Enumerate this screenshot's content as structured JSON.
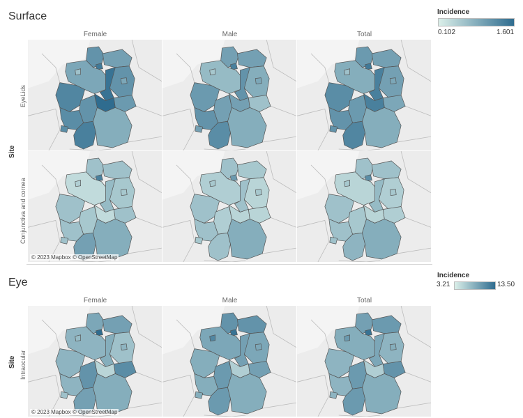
{
  "sections": [
    {
      "title": "Surface",
      "row_axis_title": "Site",
      "columns": [
        "Female",
        "Male",
        "Total"
      ],
      "rows": [
        {
          "label": "EyeLids",
          "shades": [
            [
              0.7,
              0.9,
              0.55,
              0.35,
              0.6,
              0.7,
              0.55,
              0.95,
              0.8,
              0.7,
              1.0,
              0.65,
              0.75,
              0.75,
              0.85
            ],
            [
              0.6,
              0.85,
              0.4,
              0.3,
              0.6,
              0.5,
              0.55,
              0.7,
              0.65,
              0.6,
              0.6,
              0.35,
              0.7,
              0.6,
              0.75
            ],
            [
              0.65,
              0.9,
              0.5,
              0.35,
              0.6,
              0.6,
              0.55,
              0.85,
              0.75,
              0.65,
              0.85,
              0.55,
              0.7,
              0.7,
              0.8
            ]
          ]
        },
        {
          "label": "Conjunctiva and cornea",
          "shades": [
            [
              0.35,
              0.85,
              0.15,
              0.25,
              0.35,
              0.3,
              0.3,
              0.4,
              0.35,
              0.3,
              0.15,
              0.35,
              0.35,
              0.35,
              0.6
            ],
            [
              0.35,
              0.65,
              0.25,
              0.3,
              0.3,
              0.2,
              0.3,
              0.35,
              0.35,
              0.25,
              0.2,
              0.2,
              0.35,
              0.3,
              0.35
            ],
            [
              0.35,
              0.75,
              0.2,
              0.3,
              0.35,
              0.25,
              0.3,
              0.4,
              0.35,
              0.3,
              0.2,
              0.25,
              0.35,
              0.35,
              0.45
            ]
          ]
        }
      ],
      "attribution": "© 2023 Mapbox © OpenStreetMap",
      "legend": {
        "title": "Incidence",
        "min": "0.102",
        "max": "1.601",
        "colors": [
          "#dbefe9",
          "#2f6c8f"
        ]
      }
    },
    {
      "title": "Eye",
      "row_axis_title": "Site",
      "columns": [
        "Female",
        "Male",
        "Total"
      ],
      "rows": [
        {
          "label": "Intraocular",
          "shades": [
            [
              0.55,
              1.0,
              0.45,
              0.4,
              0.6,
              0.35,
              0.45,
              0.5,
              0.45,
              0.7,
              0.2,
              0.75,
              0.45,
              0.35,
              0.6
            ],
            [
              0.7,
              0.95,
              0.55,
              0.8,
              0.7,
              0.55,
              0.55,
              0.6,
              0.5,
              0.65,
              0.25,
              0.6,
              0.5,
              0.5,
              0.65
            ],
            [
              0.6,
              0.95,
              0.5,
              0.65,
              0.65,
              0.45,
              0.5,
              0.55,
              0.45,
              0.65,
              0.25,
              0.7,
              0.45,
              0.45,
              0.65
            ]
          ]
        }
      ],
      "attribution": "© 2023 Mapbox © OpenStreetMap",
      "legend": {
        "title": "Incidence",
        "min": "3.21",
        "max": "13.50",
        "colors": [
          "#dbefe9",
          "#2f6c8f"
        ]
      }
    }
  ],
  "basemap": {
    "land": "#e6e6e6",
    "sea": "#f4f4f4",
    "border": "#555555"
  }
}
